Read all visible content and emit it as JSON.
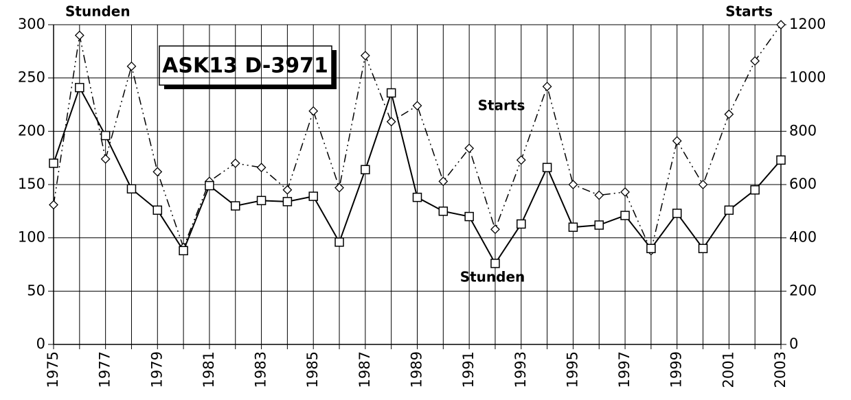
{
  "chart_data": {
    "type": "line",
    "title": "ASK13 D-3971",
    "y_label": "Stunden",
    "y2_label": "Starts",
    "annotations": [
      "Starts",
      "Stunden"
    ],
    "categories": [
      "1975",
      null,
      "1977",
      null,
      "1979",
      null,
      "1981",
      null,
      "1983",
      null,
      "1985",
      null,
      "1987",
      null,
      "1989",
      null,
      "1991",
      null,
      "1993",
      null,
      "1995",
      null,
      "1997",
      null,
      "1999",
      null,
      "2001",
      null,
      "2003"
    ],
    "series": [
      {
        "name": "Stunden",
        "color": "#000000",
        "marker": "square",
        "values": [
          170,
          241,
          196,
          146,
          126,
          88,
          149,
          130,
          135,
          134,
          139,
          96,
          164,
          236,
          138,
          125,
          120,
          76,
          113,
          166,
          110,
          112,
          121,
          90,
          123,
          90,
          126,
          145,
          173
        ]
      },
      {
        "name": "Starts",
        "color": "#000000",
        "marker": "diamond",
        "axis": "y2",
        "values": [
          524,
          1160,
          696,
          1044,
          648,
          364,
          612,
          680,
          664,
          580,
          876,
          588,
          1084,
          836,
          896,
          612,
          736,
          432,
          692,
          968,
          600,
          560,
          572,
          352,
          764,
          600,
          864,
          1064,
          1200
        ]
      }
    ],
    "ylim": [
      0,
      300
    ],
    "yticks": [
      0,
      50,
      100,
      150,
      200,
      250,
      300
    ],
    "y2lim": [
      0,
      1200
    ],
    "y2ticks": [
      0,
      200,
      400,
      600,
      800,
      1000,
      1200
    ],
    "grid": true
  }
}
